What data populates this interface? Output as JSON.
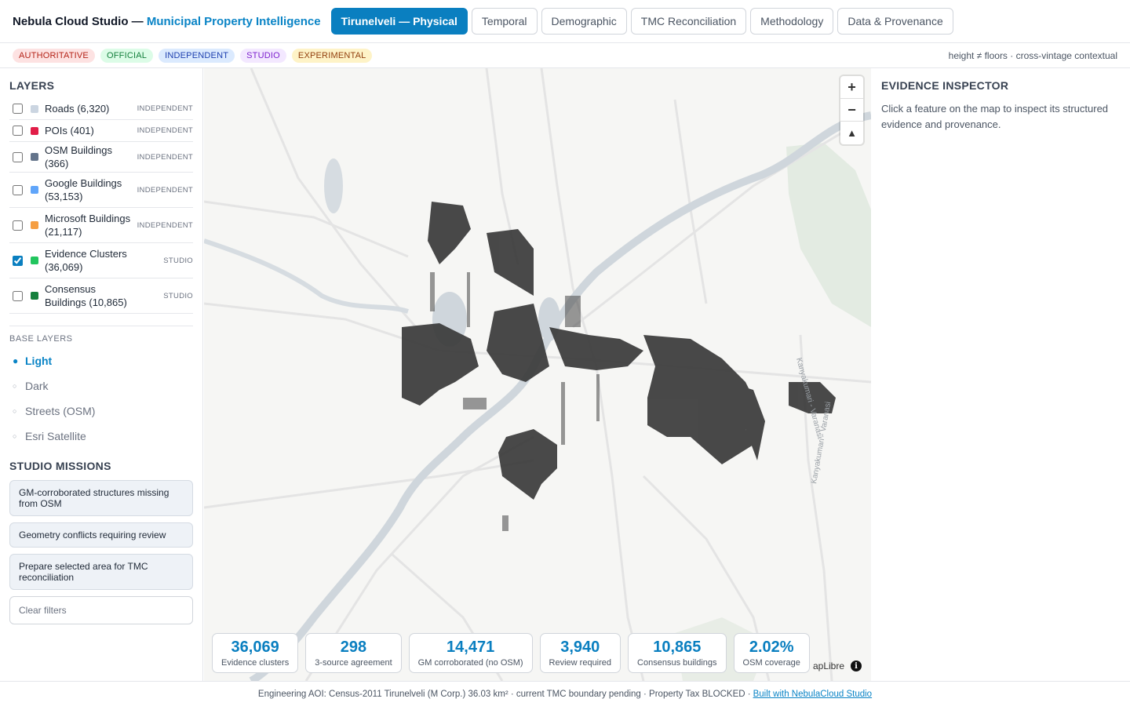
{
  "header": {
    "brand_prefix": "Nebula Cloud Studio — ",
    "brand_accent": "Municipal Property Intelligence",
    "tabs": [
      {
        "label": "Tirunelveli — Physical",
        "active": true
      },
      {
        "label": "Temporal"
      },
      {
        "label": "Demographic"
      },
      {
        "label": "TMC Reconciliation"
      },
      {
        "label": "Methodology"
      },
      {
        "label": "Data & Provenance"
      }
    ]
  },
  "badges": {
    "items": [
      "AUTHORITATIVE",
      "OFFICIAL",
      "INDEPENDENT",
      "STUDIO",
      "EXPERIMENTAL"
    ],
    "note": "height ≠ floors · cross-vintage contextual"
  },
  "layers": {
    "title": "LAYERS",
    "items": [
      {
        "label": "Roads (6,320)",
        "tag": "INDEPENDENT",
        "color": "#cbd5e1",
        "checked": false
      },
      {
        "label": "POIs (401)",
        "tag": "INDEPENDENT",
        "color": "#e11d48",
        "checked": false
      },
      {
        "label": "OSM Buildings (366)",
        "tag": "INDEPENDENT",
        "color": "#64748b",
        "checked": false
      },
      {
        "label": "Google Buildings (53,153)",
        "tag": "INDEPENDENT",
        "color": "#60a5fa",
        "checked": false
      },
      {
        "label": "Microsoft Buildings (21,117)",
        "tag": "INDEPENDENT",
        "color": "#f59e42",
        "checked": false
      },
      {
        "label": "Evidence Clusters (36,069)",
        "tag": "STUDIO",
        "color": "#22c55e",
        "checked": true
      },
      {
        "label": "Consensus Buildings (10,865)",
        "tag": "STUDIO",
        "color": "#15803d",
        "checked": false
      }
    ]
  },
  "base_layers": {
    "title": "BASE LAYERS",
    "items": [
      {
        "label": "Light",
        "active": true
      },
      {
        "label": "Dark"
      },
      {
        "label": "Streets (OSM)"
      },
      {
        "label": "Esri Satellite"
      }
    ]
  },
  "missions": {
    "title": "STUDIO MISSIONS",
    "items": [
      "GM-corroborated structures missing from OSM",
      "Geometry conflicts requiring review",
      "Prepare selected area for TMC reconciliation"
    ],
    "clear": "Clear filters"
  },
  "map": {
    "attribution": "apLibre",
    "zoom_in": "+",
    "zoom_out": "−",
    "compass": "▲",
    "info": "i",
    "road_label": "Kanyakumari - Varanasi"
  },
  "stats": [
    {
      "value": "36,069",
      "label": "Evidence clusters"
    },
    {
      "value": "298",
      "label": "3-source agreement"
    },
    {
      "value": "14,471",
      "label": "GM corroborated (no OSM)"
    },
    {
      "value": "3,940",
      "label": "Review required"
    },
    {
      "value": "10,865",
      "label": "Consensus buildings"
    },
    {
      "value": "2.02%",
      "label": "OSM coverage"
    }
  ],
  "inspector": {
    "title": "EVIDENCE INSPECTOR",
    "hint": "Click a feature on the map to inspect its structured evidence and provenance."
  },
  "footer": {
    "text": "Engineering AOI: Census-2011 Tirunelveli (M Corp.) 36.03 km² · current TMC boundary pending · Property Tax BLOCKED ·",
    "link": "Built with NebulaCloud Studio"
  }
}
